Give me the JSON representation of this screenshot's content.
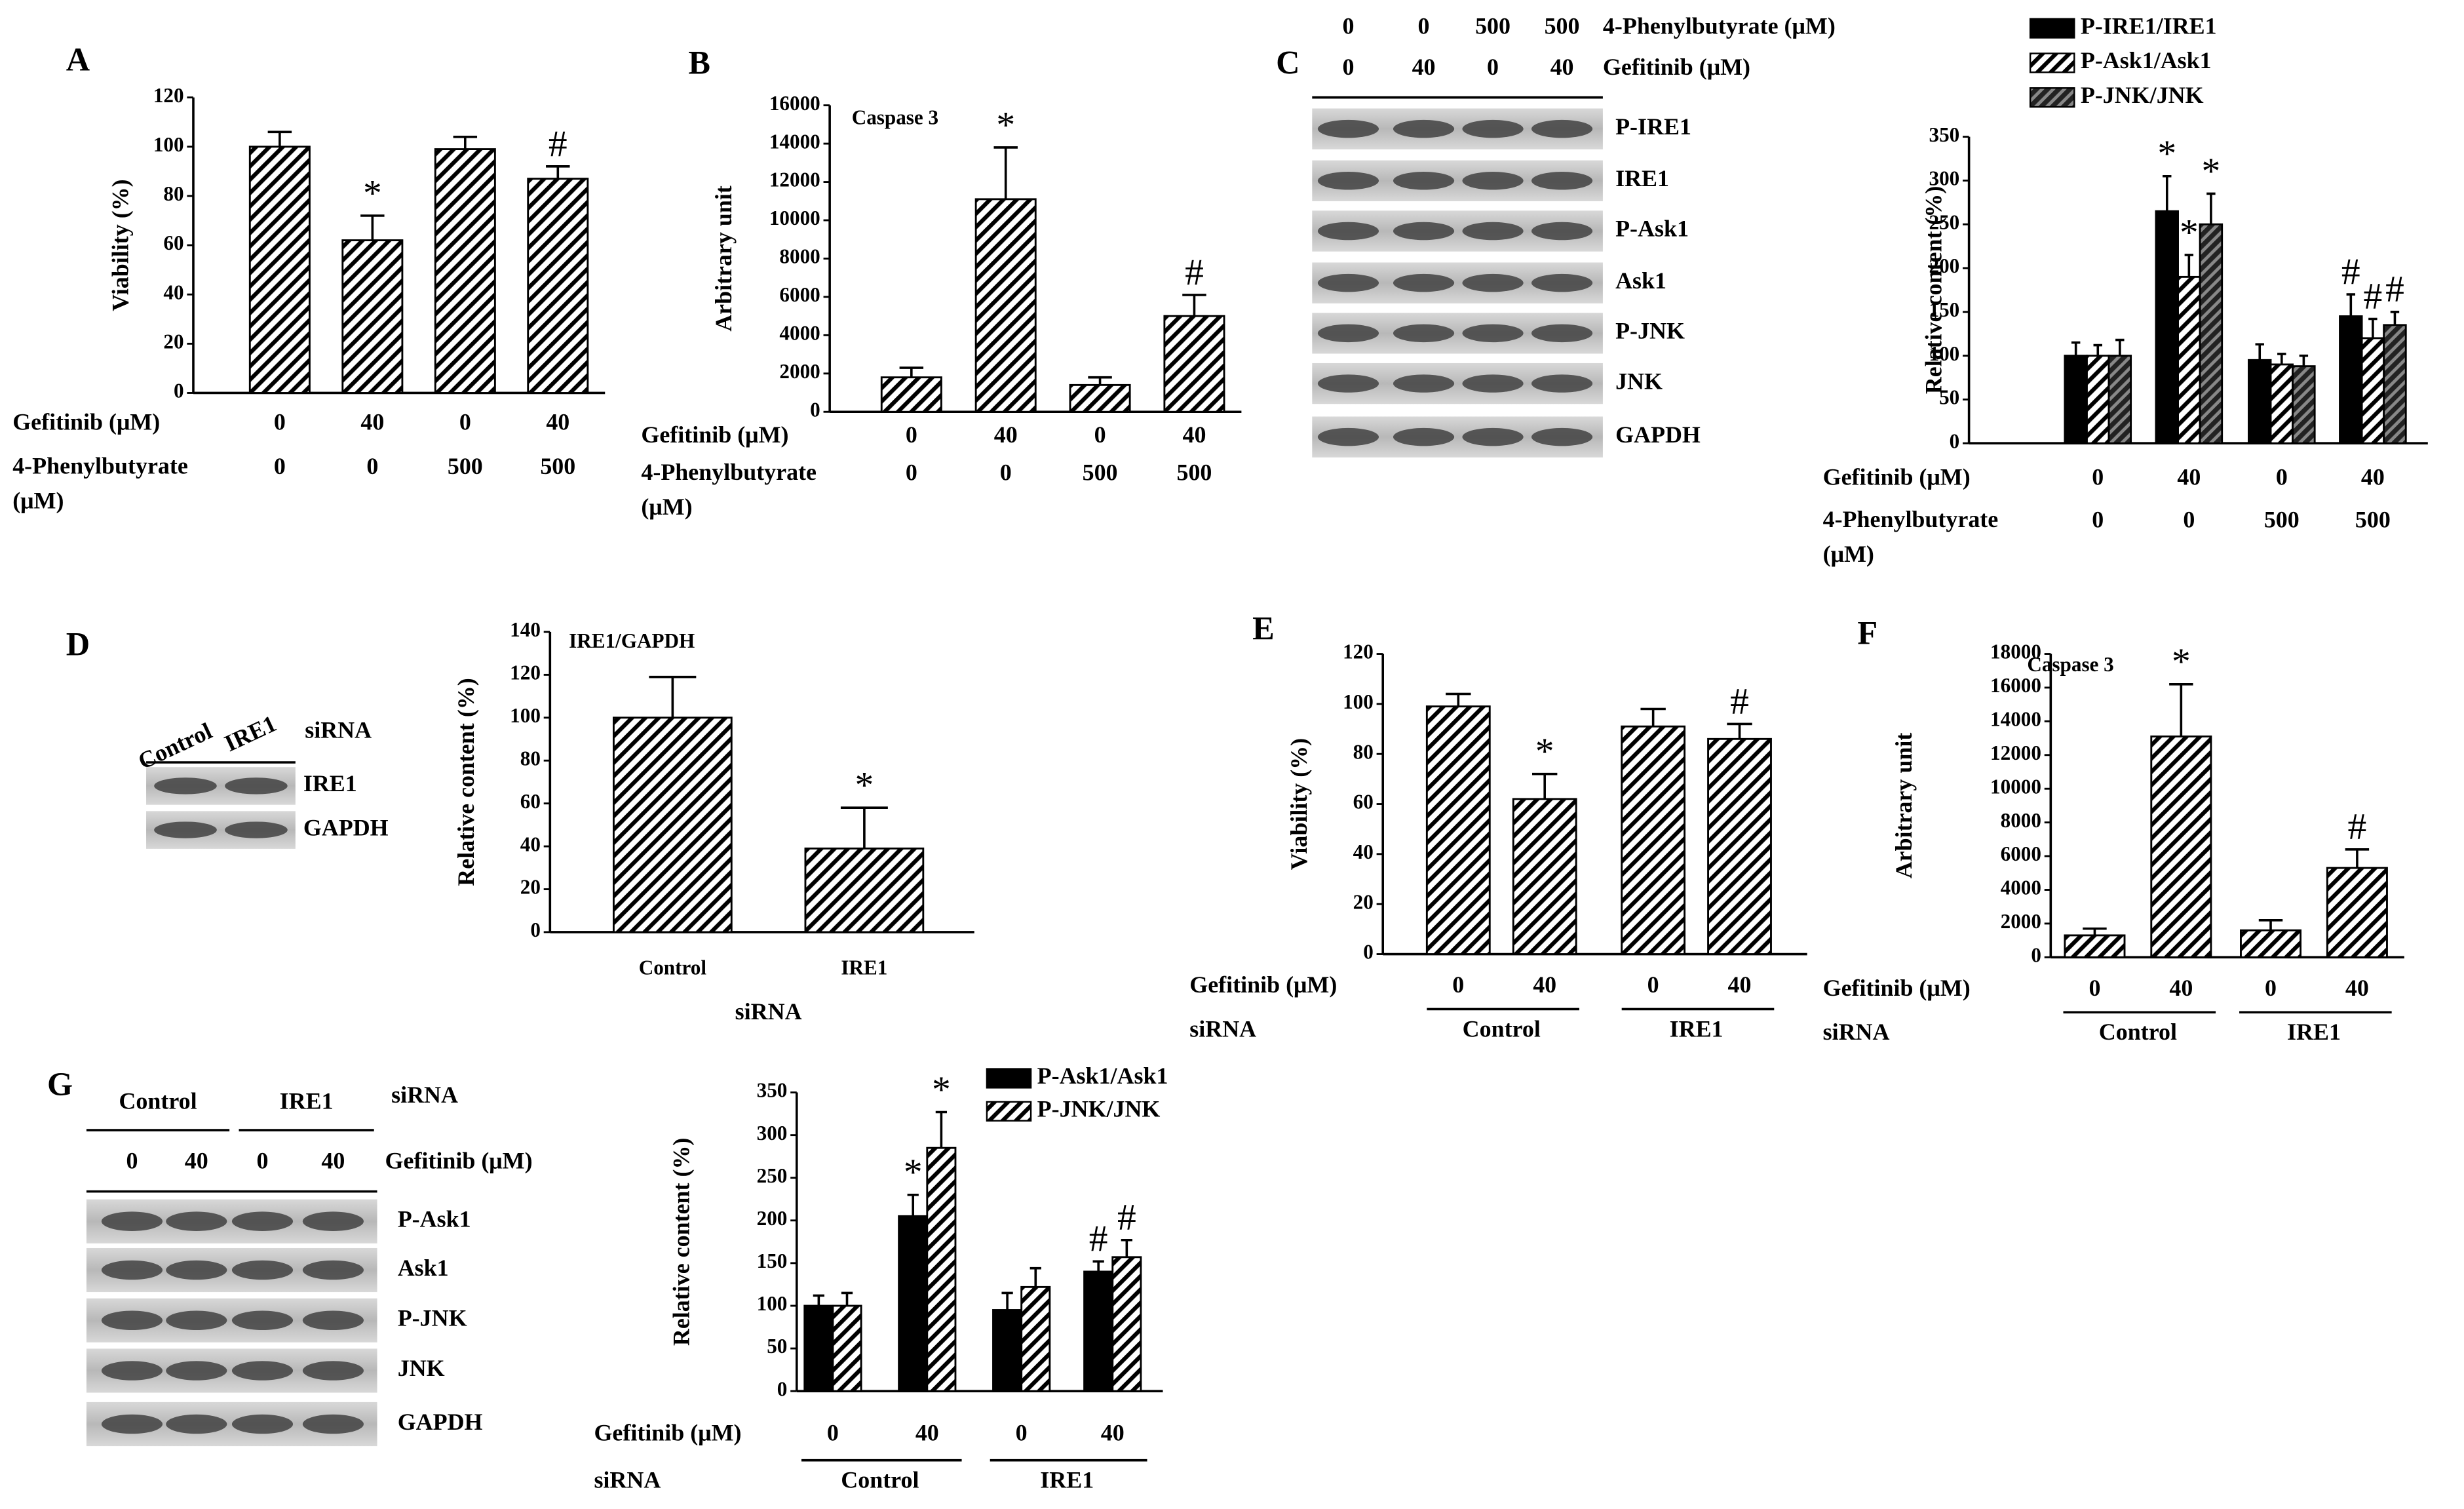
{
  "panel_labels": [
    "A",
    "B",
    "C",
    "D",
    "E",
    "F",
    "G"
  ],
  "chart_data": [
    {
      "type": "bar",
      "ylabel": "Viability (%)",
      "ylim": [
        0,
        120
      ],
      "yticks": [
        0,
        20,
        40,
        60,
        80,
        100,
        120
      ],
      "series": [
        {
          "color": "#000000",
          "pattern": "hatch",
          "values": [
            100,
            62,
            99,
            87
          ],
          "errors": [
            6,
            10,
            5,
            5
          ],
          "significance": [
            null,
            "*",
            null,
            "#"
          ]
        }
      ],
      "conditions": [
        {
          "label": "Gefitinib (μM)",
          "values": [
            "0",
            "40",
            "0",
            "40"
          ]
        },
        {
          "label": "4-Phenylbutyrate (μM)",
          "values": [
            "0",
            "0",
            "500",
            "500"
          ]
        }
      ]
    },
    {
      "type": "bar",
      "ylabel": "Arbitrary unit",
      "note": "Caspase 3",
      "ylim": [
        0,
        16000
      ],
      "yticks": [
        0,
        2000,
        4000,
        6000,
        8000,
        10000,
        12000,
        14000,
        16000
      ],
      "series": [
        {
          "color": "#000000",
          "pattern": "hatch",
          "values": [
            1800,
            11100,
            1400,
            5000
          ],
          "errors": [
            500,
            2700,
            400,
            1100
          ],
          "significance": [
            null,
            "*",
            null,
            "#"
          ]
        }
      ],
      "conditions": [
        {
          "label": "Gefitinib (μM)",
          "values": [
            "0",
            "40",
            "0",
            "40"
          ]
        },
        {
          "label": "4-Phenylbutyrate (μM)",
          "values": [
            "0",
            "0",
            "500",
            "500"
          ]
        }
      ]
    },
    {
      "type": "bar",
      "ylabel": "Relative content (%)",
      "ylim": [
        0,
        350
      ],
      "yticks": [
        0,
        50,
        100,
        150,
        200,
        250,
        300,
        350
      ],
      "legend": "top",
      "series": [
        {
          "name": "P-IRE1/IRE1",
          "color": "#000000",
          "pattern": "solid",
          "values": [
            100,
            265,
            95,
            145
          ],
          "errors": [
            15,
            40,
            18,
            25
          ],
          "significance": [
            null,
            "*",
            null,
            "#"
          ]
        },
        {
          "name": "P-Ask1/Ask1",
          "color": "#000000",
          "pattern": "hatch",
          "values": [
            100,
            190,
            90,
            120
          ],
          "errors": [
            12,
            25,
            12,
            22
          ],
          "significance": [
            null,
            "*",
            null,
            "#"
          ]
        },
        {
          "name": "P-JNK/JNK",
          "color": "#000000",
          "pattern": "dense-hatch",
          "values": [
            100,
            250,
            88,
            135
          ],
          "errors": [
            18,
            35,
            12,
            15
          ],
          "significance": [
            null,
            "*",
            null,
            "#"
          ]
        }
      ],
      "conditions": [
        {
          "label": "Gefitinib (μM)",
          "values": [
            "0",
            "40",
            "0",
            "40"
          ]
        },
        {
          "label": "4-Phenylbutyrate (μM)",
          "values": [
            "0",
            "0",
            "500",
            "500"
          ]
        }
      ]
    },
    {
      "type": "bar",
      "ylabel": "Relative content (%)",
      "note": "IRE1/GAPDH",
      "ylim": [
        0,
        140
      ],
      "yticks": [
        0,
        20,
        40,
        60,
        80,
        100,
        120,
        140
      ],
      "categories": [
        "Control",
        "IRE1"
      ],
      "xlabel": "siRNA",
      "series": [
        {
          "color": "#000000",
          "pattern": "hatch",
          "values": [
            100,
            39
          ],
          "errors": [
            19,
            19
          ],
          "significance": [
            null,
            "*"
          ]
        }
      ]
    },
    {
      "type": "bar",
      "ylabel": "Viability (%)",
      "ylim": [
        0,
        120
      ],
      "yticks": [
        0,
        20,
        40,
        60,
        80,
        100,
        120
      ],
      "series": [
        {
          "color": "#000000",
          "pattern": "hatch",
          "values": [
            99,
            62,
            91,
            86
          ],
          "errors": [
            5,
            10,
            7,
            6
          ],
          "significance": [
            null,
            "*",
            null,
            "#"
          ]
        }
      ],
      "conditions": [
        {
          "label": "Gefitinib (μM)",
          "values": [
            "0",
            "40",
            "0",
            "40"
          ]
        }
      ],
      "groups": {
        "label": "siRNA",
        "names": [
          "Control",
          "IRE1"
        ]
      }
    },
    {
      "type": "bar",
      "ylabel": "Arbitrary unit",
      "note": "Caspase 3",
      "ylim": [
        0,
        18000
      ],
      "yticks": [
        0,
        2000,
        4000,
        6000,
        8000,
        10000,
        12000,
        14000,
        16000,
        18000
      ],
      "series": [
        {
          "color": "#000000",
          "pattern": "hatch",
          "values": [
            1300,
            13100,
            1600,
            5300
          ],
          "errors": [
            400,
            3100,
            600,
            1100
          ],
          "significance": [
            null,
            "*",
            null,
            "#"
          ]
        }
      ],
      "conditions": [
        {
          "label": "Gefitinib (μM)",
          "values": [
            "0",
            "40",
            "0",
            "40"
          ]
        }
      ],
      "groups": {
        "label": "siRNA",
        "names": [
          "Control",
          "IRE1"
        ]
      }
    },
    {
      "type": "bar",
      "ylabel": "Relative content (%)",
      "ylim": [
        0,
        350
      ],
      "yticks": [
        0,
        50,
        100,
        150,
        200,
        250,
        300,
        350
      ],
      "legend": "top",
      "series": [
        {
          "name": "P-Ask1/Ask1",
          "color": "#000000",
          "pattern": "solid",
          "values": [
            100,
            205,
            95,
            140
          ],
          "errors": [
            12,
            25,
            20,
            12
          ],
          "significance": [
            null,
            "*",
            null,
            "#"
          ]
        },
        {
          "name": "P-JNK/JNK",
          "color": "#000000",
          "pattern": "hatch",
          "values": [
            100,
            285,
            122,
            157
          ],
          "errors": [
            15,
            42,
            22,
            20
          ],
          "significance": [
            null,
            "*",
            null,
            "#"
          ]
        }
      ],
      "conditions": [
        {
          "label": "Gefitinib (μM)",
          "values": [
            "0",
            "40",
            "0",
            "40"
          ]
        }
      ],
      "groups": {
        "label": "siRNA",
        "names": [
          "Control",
          "IRE1"
        ]
      }
    }
  ],
  "blots": [
    {
      "column_rows": [
        {
          "label": "4-Phenylbutyrate (μM)",
          "values": [
            "0",
            "0",
            "500",
            "500"
          ]
        },
        {
          "label": "Gefitinib (μM)",
          "values": [
            "0",
            "40",
            "0",
            "40"
          ]
        }
      ],
      "bands": [
        "P-IRE1",
        "IRE1",
        "P-Ask1",
        "Ask1",
        "P-JNK",
        "JNK",
        "GAPDH"
      ]
    },
    {
      "columns": {
        "label": "siRNA",
        "names": [
          "Control",
          "IRE1"
        ]
      },
      "bands": [
        "IRE1",
        "GAPDH"
      ]
    },
    {
      "groups": {
        "label": "siRNA",
        "names": [
          "Control",
          "IRE1"
        ]
      },
      "column_rows": [
        {
          "label": "Gefitinib (μM)",
          "values": [
            "0",
            "40",
            "0",
            "40"
          ]
        }
      ],
      "bands": [
        "P-Ask1",
        "Ask1",
        "P-JNK",
        "JNK",
        "GAPDH"
      ]
    }
  ]
}
